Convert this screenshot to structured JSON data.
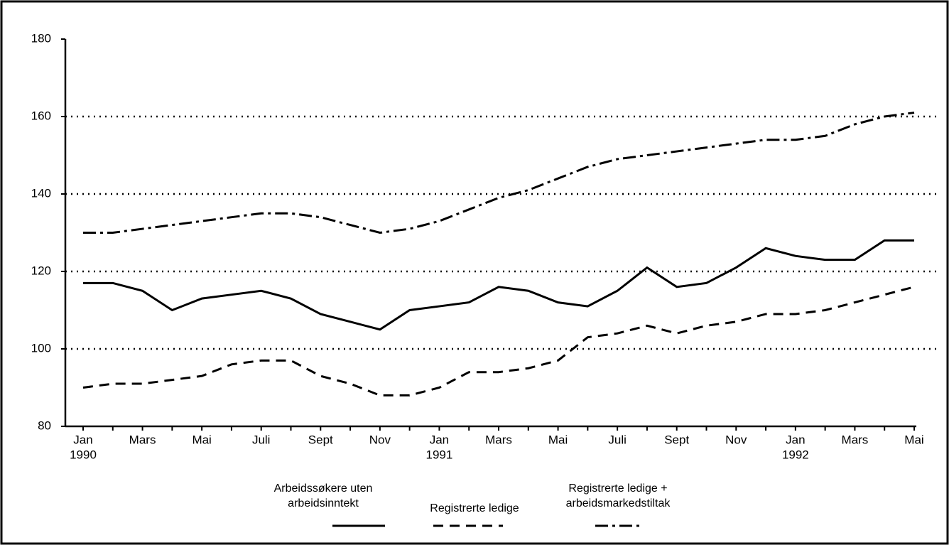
{
  "chart_data": {
    "type": "line",
    "categories": [
      "Jan",
      null,
      "Mars",
      null,
      "Mai",
      null,
      "Juli",
      null,
      "Sept",
      null,
      "Nov",
      null,
      "Jan",
      null,
      "Mars",
      null,
      "Mai",
      null,
      "Juli",
      null,
      "Sept",
      null,
      "Nov",
      null,
      "Jan",
      null,
      "Mars",
      null,
      "Mai"
    ],
    "category_years": [
      "1990",
      null,
      null,
      null,
      null,
      null,
      null,
      null,
      null,
      null,
      null,
      null,
      "1991",
      null,
      null,
      null,
      null,
      null,
      null,
      null,
      null,
      null,
      null,
      null,
      "1992",
      null,
      null,
      null,
      null
    ],
    "ylim": [
      80,
      180
    ],
    "yticks": [
      80,
      100,
      120,
      140,
      160,
      180
    ],
    "grid": true,
    "series": [
      {
        "name": "Arbeidssøkere uten\narbeidsinntekt",
        "color": "#000000",
        "dash": "solid",
        "values": [
          117,
          117,
          115,
          110,
          113,
          114,
          115,
          113,
          109,
          107,
          105,
          110,
          111,
          112,
          116,
          115,
          112,
          111,
          115,
          121,
          116,
          117,
          121,
          126,
          124,
          123,
          123,
          128,
          128
        ]
      },
      {
        "name": "Registrerte ledige",
        "color": "#000000",
        "dash": "dashed",
        "values": [
          90,
          91,
          91,
          92,
          93,
          96,
          97,
          97,
          93,
          91,
          88,
          88,
          90,
          94,
          94,
          95,
          97,
          103,
          104,
          106,
          104,
          106,
          107,
          109,
          109,
          110,
          112,
          114,
          116
        ]
      },
      {
        "name": "Registrerte ledige +\narbeidsmarkedstiltak",
        "color": "#000000",
        "dash": "dashdot",
        "values": [
          130,
          130,
          131,
          132,
          133,
          134,
          135,
          135,
          134,
          132,
          130,
          131,
          133,
          136,
          139,
          141,
          144,
          147,
          149,
          150,
          151,
          152,
          153,
          154,
          154,
          155,
          158,
          160,
          161
        ]
      }
    ]
  }
}
